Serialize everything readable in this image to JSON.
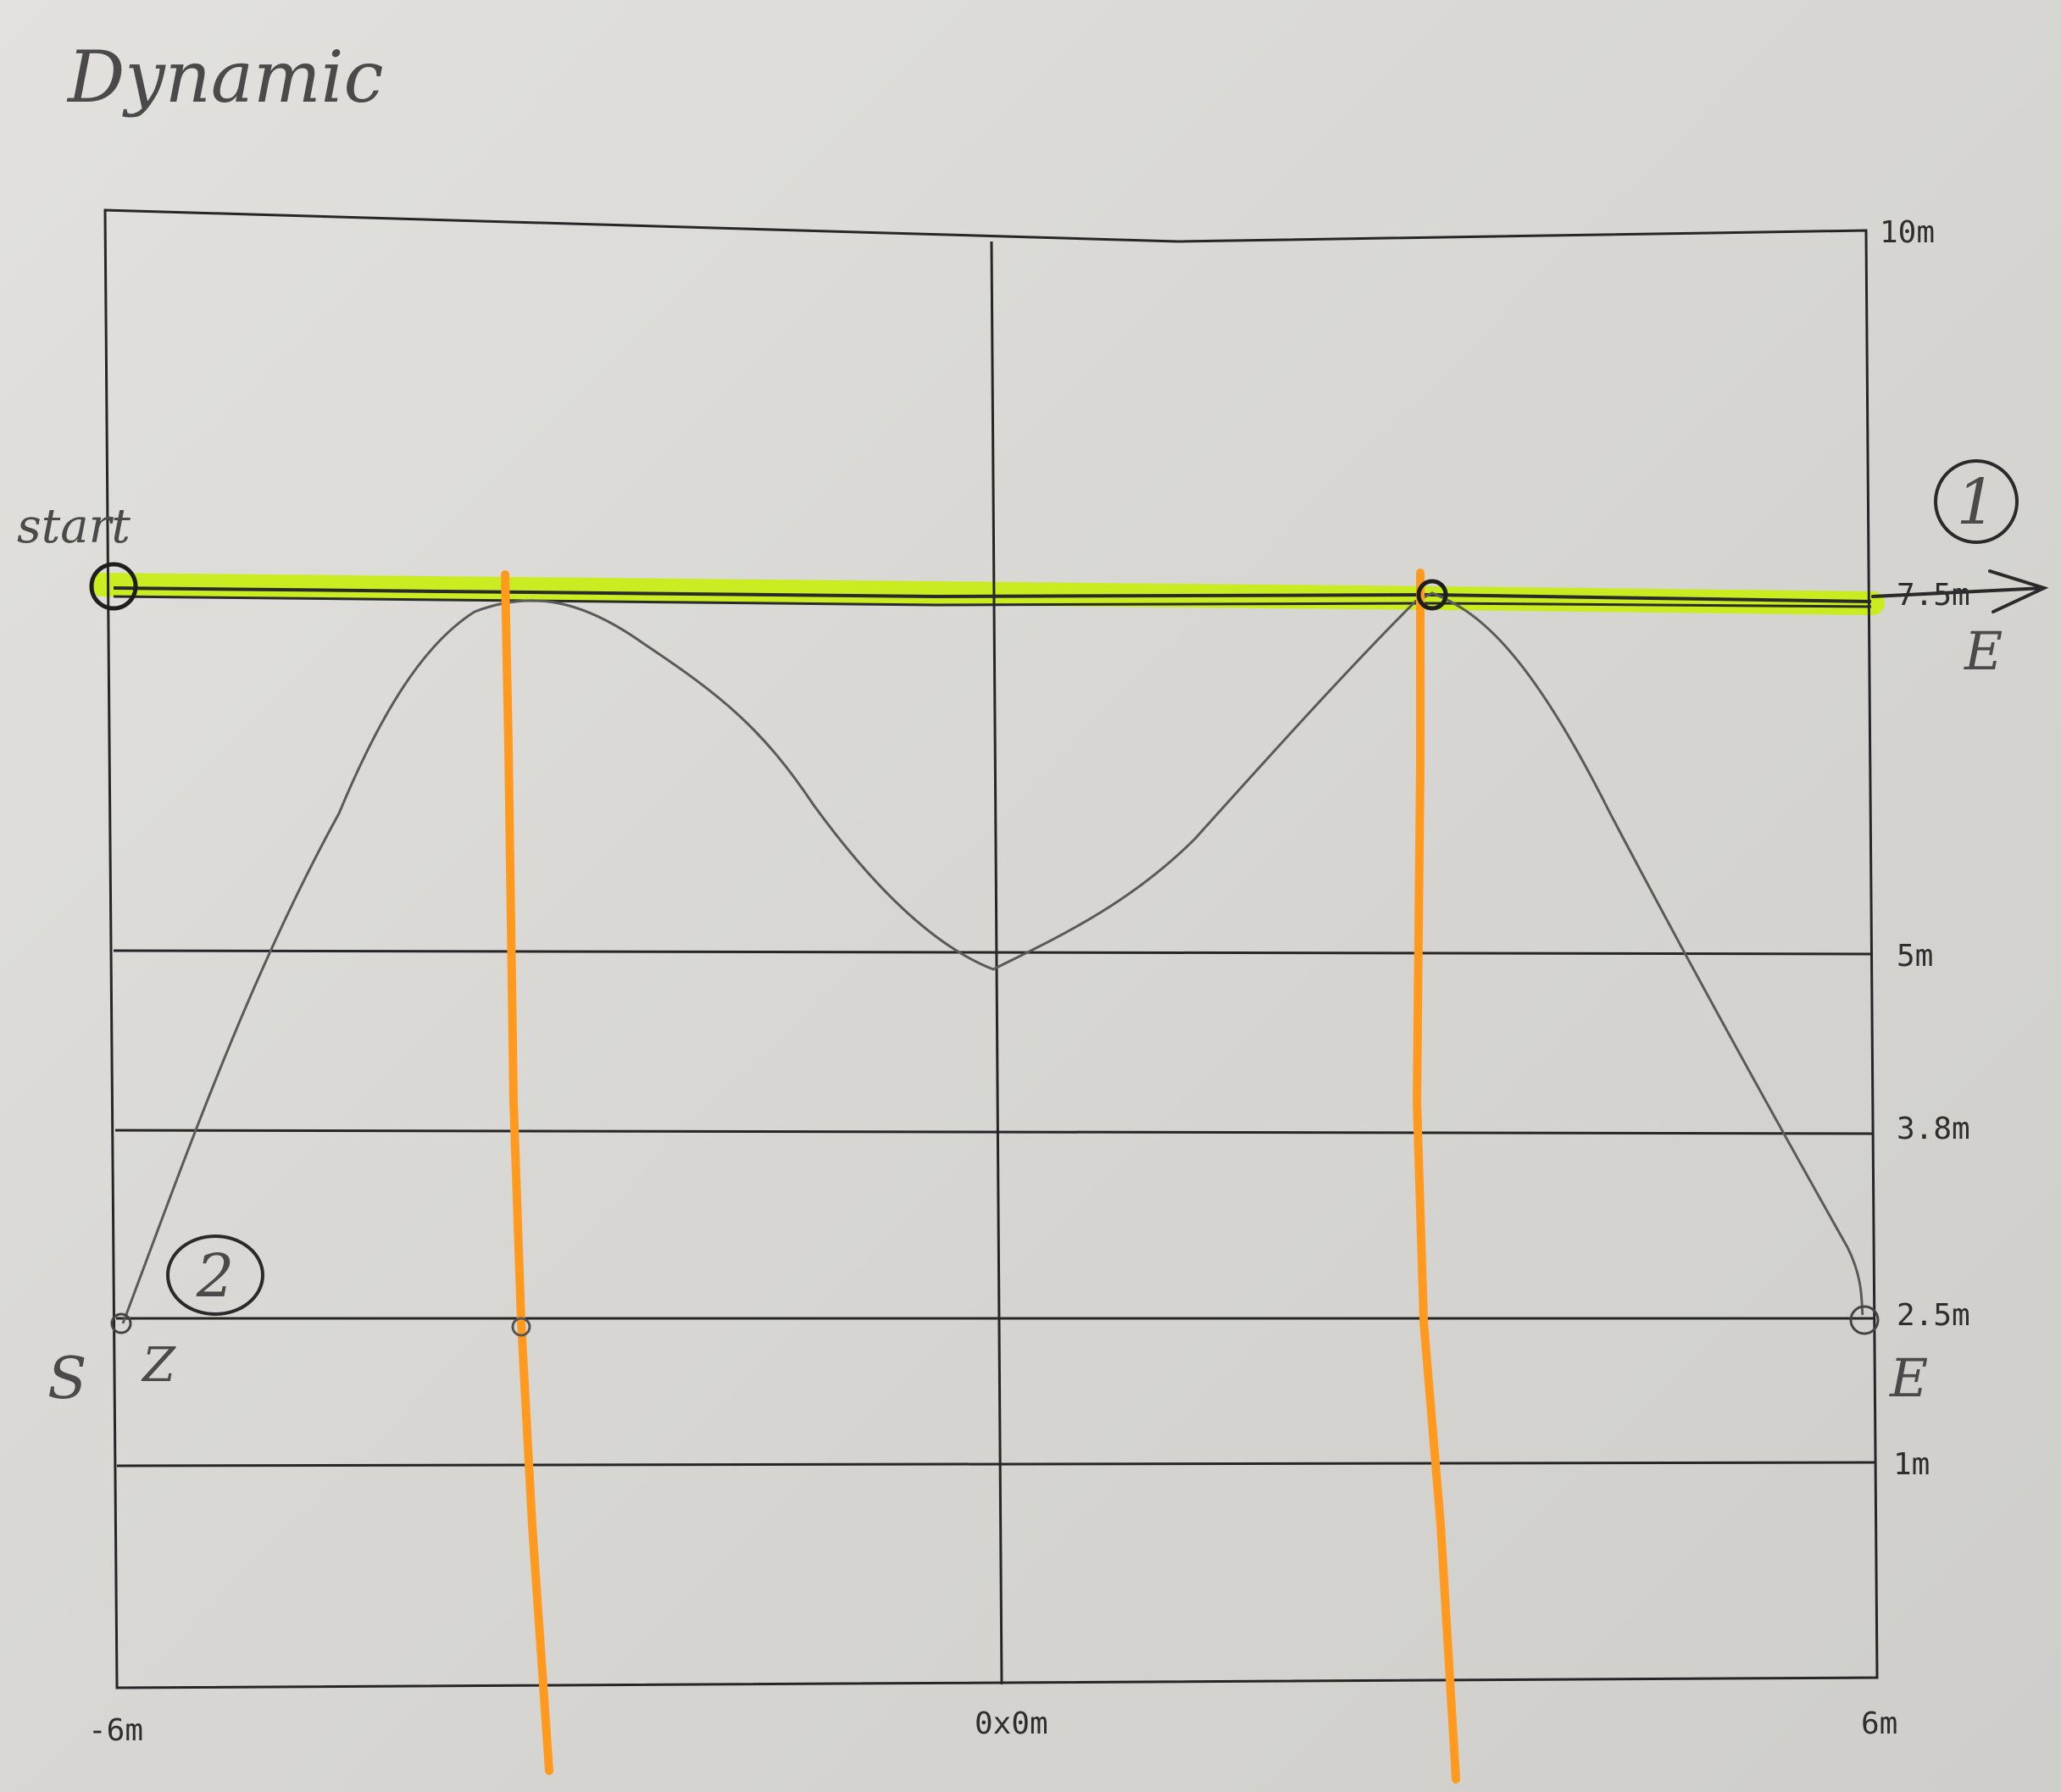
{
  "title": "Dynamic",
  "plot": {
    "x_labels": {
      "left": "-6m",
      "center": "0x0m",
      "right": "6m"
    },
    "y_labels": [
      {
        "value": 10,
        "text": "10m"
      },
      {
        "value": 7.5,
        "text": "7.5m"
      },
      {
        "value": 5,
        "text": "5m"
      },
      {
        "value": 3.8,
        "text": "3.8m"
      },
      {
        "value": 2.5,
        "text": "2.5m"
      },
      {
        "value": 1,
        "text": "1m"
      }
    ],
    "x_range": [
      -6,
      6
    ],
    "y_range": [
      -0.5,
      10
    ]
  },
  "annotations": {
    "start": "start",
    "path1_marker": "1",
    "path1_end": "E",
    "path2_marker": "2",
    "path2_start": "S",
    "path2_z": "Z",
    "path2_end": "E"
  },
  "colors": {
    "highlight": "#c6f000",
    "orange": "#ff9a1f",
    "ink": "#2a2a2a",
    "pencil": "#5a5a5a"
  }
}
